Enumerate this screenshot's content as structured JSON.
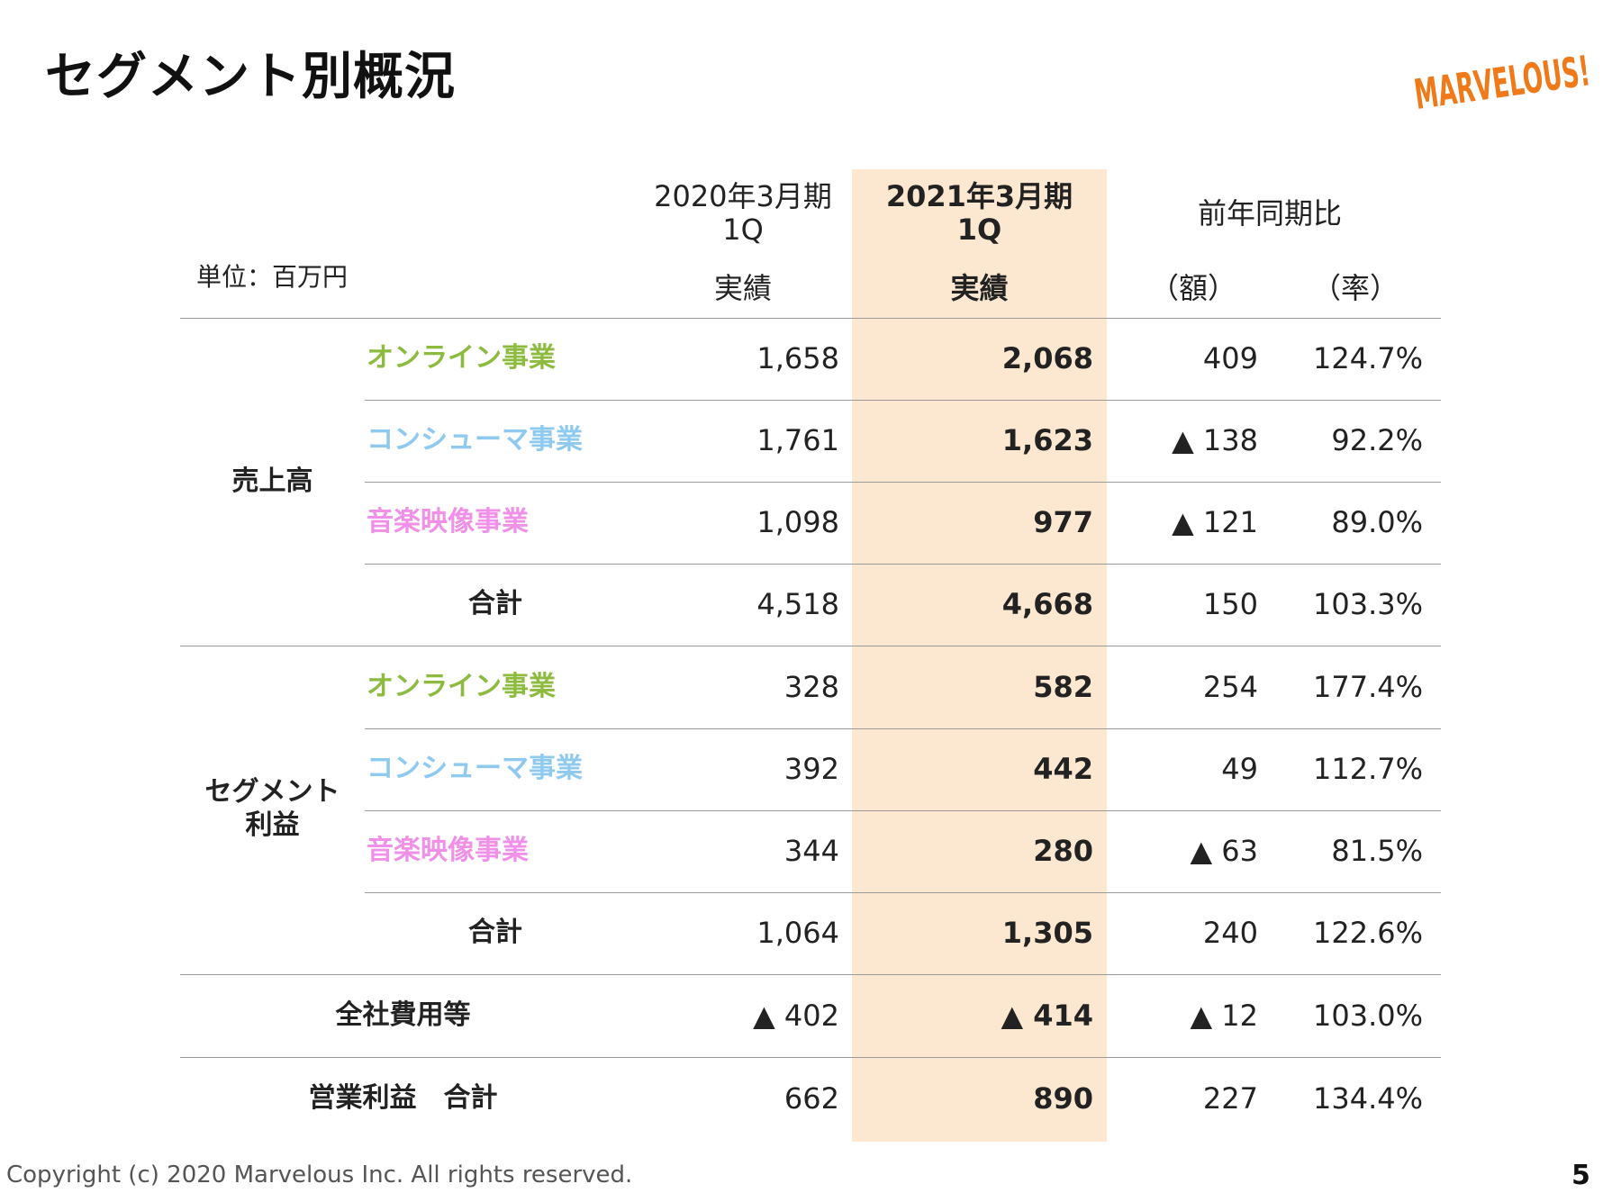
{
  "title": "セグメント別概況",
  "logo_text": "MARVELOUS!",
  "unit": "単位：百万円",
  "headers": {
    "prev_period": "2020年3月期",
    "prev_q": "1Q",
    "prev_sub": "実績",
    "curr_period": "2021年3月期",
    "curr_q": "1Q",
    "curr_sub": "実績",
    "yoy": "前年同期比",
    "yoy_amount": "（額）",
    "yoy_rate": "（率）"
  },
  "groups": {
    "sales": "売上高",
    "segment_profit_line1": "セグメント",
    "segment_profit_line2": "利益"
  },
  "rows": [
    {
      "label": "オンライン事業",
      "prev": "1,658",
      "curr": "2,068",
      "amt": "409",
      "rate": "124.7%"
    },
    {
      "label": "コンシューマ事業",
      "prev": "1,761",
      "curr": "1,623",
      "amt": "▲ 138",
      "rate": "92.2%"
    },
    {
      "label": "音楽映像事業",
      "prev": "1,098",
      "curr": "977",
      "amt": "▲ 121",
      "rate": "89.0%"
    },
    {
      "label": "合計",
      "prev": "4,518",
      "curr": "4,668",
      "amt": "150",
      "rate": "103.3%"
    },
    {
      "label": "オンライン事業",
      "prev": "328",
      "curr": "582",
      "amt": "254",
      "rate": "177.4%"
    },
    {
      "label": "コンシューマ事業",
      "prev": "392",
      "curr": "442",
      "amt": "49",
      "rate": "112.7%"
    },
    {
      "label": "音楽映像事業",
      "prev": "344",
      "curr": "280",
      "amt": "▲ 63",
      "rate": "81.5%"
    },
    {
      "label": "合計",
      "prev": "1,064",
      "curr": "1,305",
      "amt": "240",
      "rate": "122.6%"
    },
    {
      "label": "全社費用等",
      "prev": "▲ 402",
      "curr": "▲ 414",
      "amt": "▲ 12",
      "rate": "103.0%"
    },
    {
      "label": "営業利益　合計",
      "prev": "662",
      "curr": "890",
      "amt": "227",
      "rate": "134.4%"
    }
  ],
  "colors": {
    "online": "#8dbb3f",
    "consumer": "#8ec9f0",
    "music": "#f090e8",
    "highlight": "#fce8d0",
    "logo": "#f07a1a"
  },
  "footer": "Copyright (c) 2020 Marvelous Inc. All rights reserved.",
  "page_number": "5"
}
